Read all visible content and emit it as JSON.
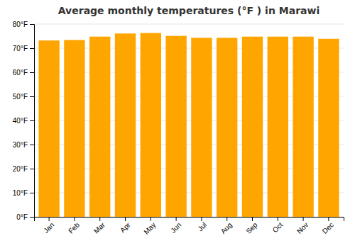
{
  "chart_data": {
    "type": "bar",
    "title": "Average monthly temperatures (°F ) in Marawi",
    "categories": [
      "Jan",
      "Feb",
      "Mar",
      "Apr",
      "May",
      "Jun",
      "Jul",
      "Aug",
      "Sep",
      "Oct",
      "Nov",
      "Dec"
    ],
    "values": [
      73.2,
      73.4,
      74.8,
      76.1,
      76.3,
      75.1,
      74.3,
      74.3,
      74.8,
      74.8,
      74.8,
      73.9
    ],
    "color": "#FFA500",
    "ylim": [
      0,
      80
    ],
    "yticks": [
      {
        "value": 0,
        "label": "0°F"
      },
      {
        "value": 10,
        "label": "10°F"
      },
      {
        "value": 20,
        "label": "20°F"
      },
      {
        "value": 30,
        "label": "30°F"
      },
      {
        "value": 40,
        "label": "40°F"
      },
      {
        "value": 50,
        "label": "50°F"
      },
      {
        "value": 60,
        "label": "60°F"
      },
      {
        "value": 70,
        "label": "70°F"
      },
      {
        "value": 80,
        "label": "80°F"
      }
    ],
    "grid": true
  }
}
